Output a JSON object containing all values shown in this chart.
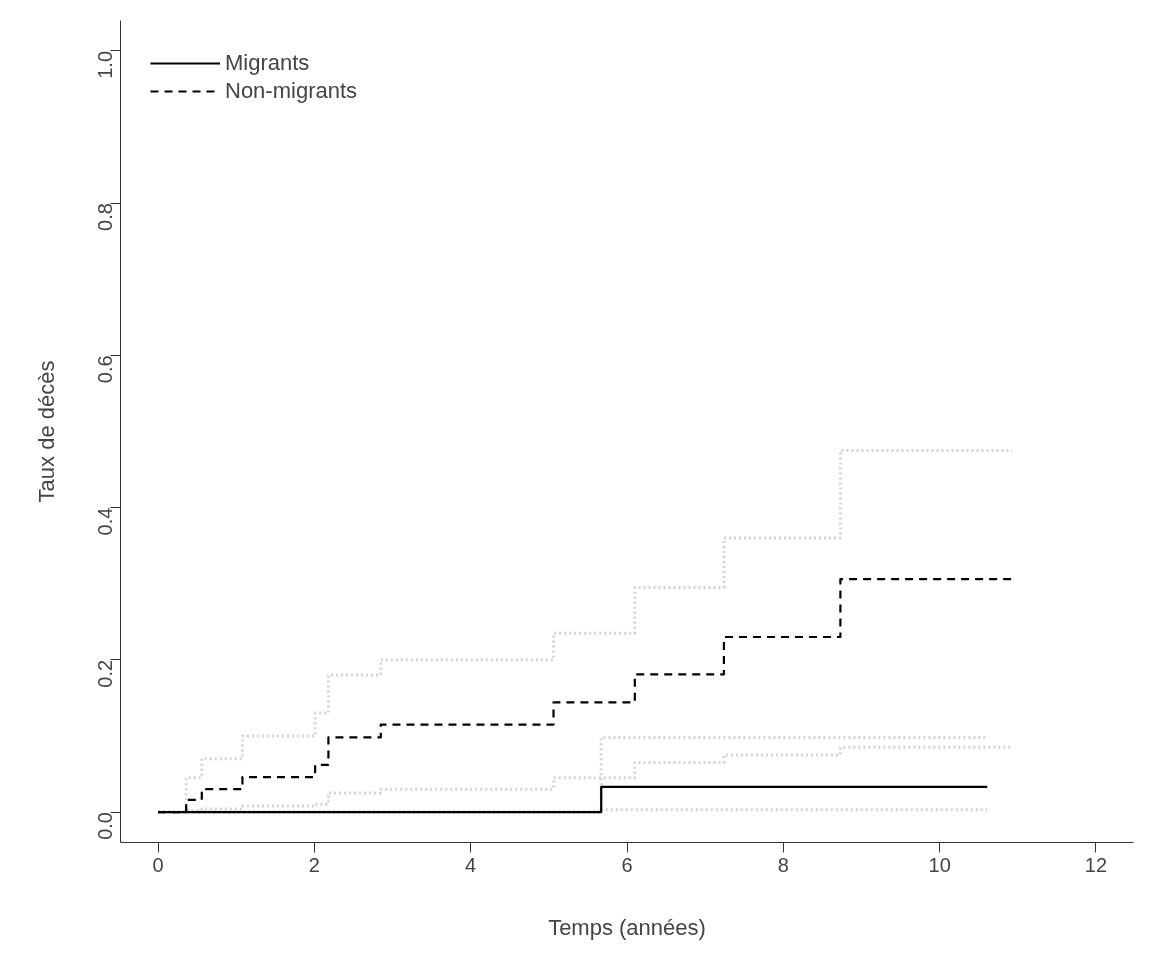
{
  "chart_data": {
    "type": "step",
    "xlabel": "Temps (années)",
    "ylabel": "Taux de décès",
    "xlim": [
      -0.48,
      12.48
    ],
    "ylim": [
      -0.04,
      1.04
    ],
    "xticks": [
      0,
      2,
      4,
      6,
      8,
      10,
      12
    ],
    "yticks": [
      {
        "value": 0,
        "label": "0.0"
      },
      {
        "value": 0.2,
        "label": "0.2"
      },
      {
        "value": 0.4,
        "label": "0.4"
      },
      {
        "value": 0.6,
        "label": "0.6"
      },
      {
        "value": 0.8,
        "label": "0.8"
      },
      {
        "value": 1.0,
        "label": "1.0"
      }
    ],
    "grid": false,
    "legend": "top left",
    "series": [
      {
        "color": "#d4d4d4",
        "line_style": "dotted",
        "x": [
          0,
          5.67,
          10.61
        ],
        "values": [
          0,
          0.098,
          0.098
        ]
      },
      {
        "color": "#d4d4d4",
        "line_style": "dotted",
        "x": [
          0,
          5.67,
          10.61
        ],
        "values": [
          0,
          0.003,
          0.003
        ]
      },
      {
        "color": "#d4d4d4",
        "line_style": "dotted",
        "x": [
          0,
          0.36,
          0.56,
          1.08,
          2.01,
          2.18,
          2.85,
          5.06,
          6.1,
          7.24,
          8.73,
          10.93
        ],
        "values": [
          0,
          0.045,
          0.07,
          0.1,
          0.13,
          0.18,
          0.2,
          0.235,
          0.295,
          0.36,
          0.475,
          0.475
        ]
      },
      {
        "color": "#d4d4d4",
        "line_style": "dotted",
        "x": [
          0,
          0.36,
          0.56,
          1.08,
          2.01,
          2.18,
          2.85,
          5.06,
          6.1,
          7.24,
          8.73,
          10.93
        ],
        "values": [
          0,
          0.002,
          0.004,
          0.008,
          0.01,
          0.025,
          0.03,
          0.045,
          0.065,
          0.075,
          0.085,
          0.085
        ]
      },
      {
        "name": "Migrants",
        "color": "#000000",
        "line_style": "solid",
        "x": [
          0,
          5.67,
          10.61
        ],
        "values": [
          0,
          0.033,
          0.033
        ]
      },
      {
        "name": "Non-migrants",
        "color": "#000000",
        "line_style": "dashed",
        "x": [
          0,
          0.36,
          0.56,
          1.08,
          2.01,
          2.18,
          2.85,
          5.06,
          6.1,
          7.24,
          8.73,
          10.93
        ],
        "values": [
          0,
          0.016,
          0.03,
          0.046,
          0.062,
          0.098,
          0.115,
          0.144,
          0.181,
          0.23,
          0.306,
          0.306
        ]
      }
    ]
  }
}
